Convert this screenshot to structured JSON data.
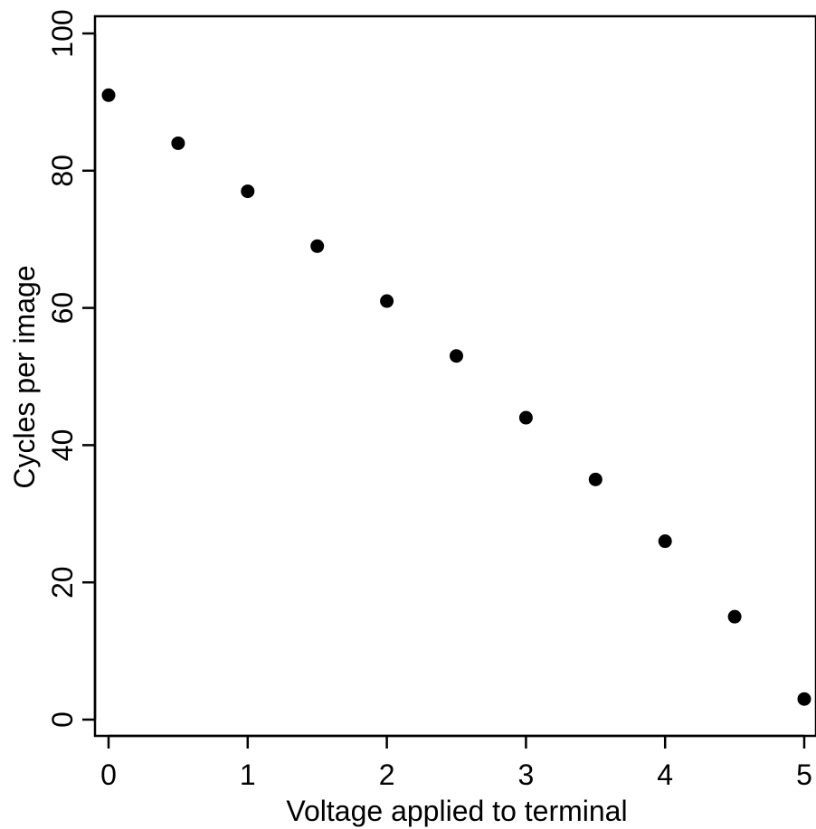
{
  "chart_data": {
    "type": "scatter",
    "title": "",
    "xlabel": "Voltage applied to terminal",
    "ylabel": "Cycles per image",
    "xlim": [
      0,
      5
    ],
    "ylim": [
      0,
      100
    ],
    "x_ticks": [
      0,
      1,
      2,
      3,
      4,
      5
    ],
    "y_ticks": [
      0,
      20,
      40,
      60,
      80,
      100
    ],
    "x_tick_labels": [
      "0",
      "1",
      "2",
      "3",
      "4",
      "5"
    ],
    "y_tick_labels": [
      "0",
      "20",
      "40",
      "60",
      "80",
      "100"
    ],
    "grid": false,
    "legend": "none",
    "series": [
      {
        "color": "#000000",
        "x": [
          0,
          0.5,
          1,
          1.5,
          2,
          2.5,
          3,
          3.5,
          4,
          4.5,
          5
        ],
        "y": [
          91,
          84,
          77,
          69,
          61,
          53,
          44,
          35,
          26,
          15,
          3
        ]
      }
    ]
  }
}
